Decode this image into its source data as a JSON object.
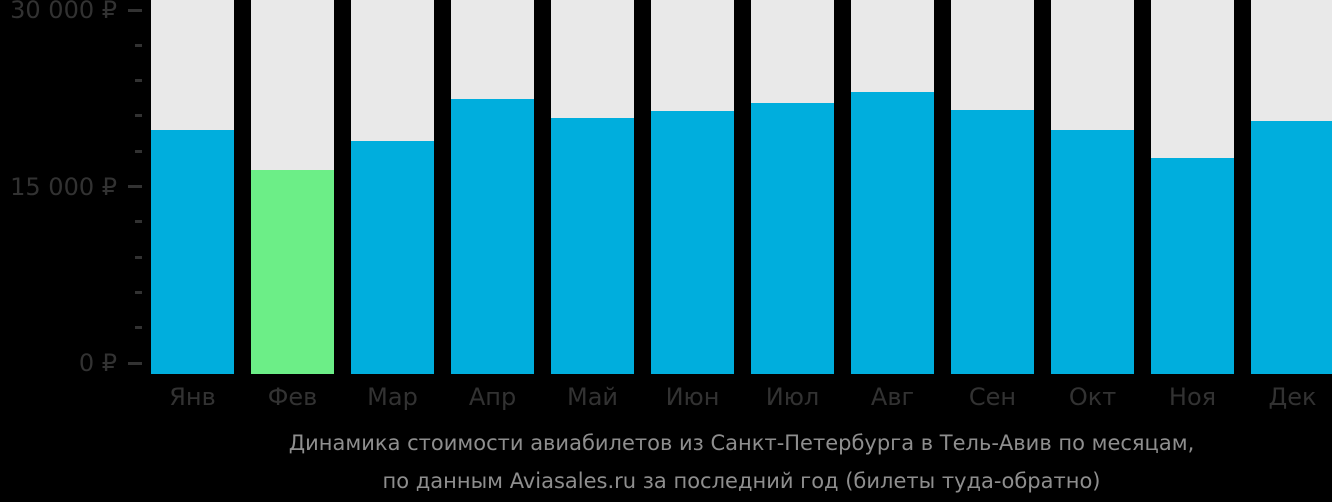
{
  "chart_data": {
    "type": "bar",
    "title": "",
    "categories": [
      "Янв",
      "Фев",
      "Мар",
      "Апр",
      "Май",
      "Июн",
      "Июл",
      "Авг",
      "Сен",
      "Окт",
      "Ноя",
      "Дек"
    ],
    "values": [
      19800,
      16400,
      18900,
      22400,
      20800,
      21400,
      22100,
      23000,
      21500,
      19800,
      17400,
      20600
    ],
    "unit": "₽",
    "highlighted_index": 1,
    "xlabel": "",
    "ylabel": "",
    "grid": false,
    "legend_position": "none",
    "y_axis": {
      "min": 0,
      "max": 30000,
      "minor_tick_step": 3000,
      "major_ticks": [
        {
          "value": 0,
          "label": "0 ₽"
        },
        {
          "value": 15000,
          "label": "15 000 ₽"
        },
        {
          "value": 30000,
          "label": "30 000 ₽"
        }
      ]
    },
    "colors": {
      "bar": "#00aedd",
      "bar_highlight": "#6cee87",
      "bar_track": "#e9e9e9",
      "axis_text": "#323232",
      "caption_text": "#8e8e8e",
      "background": "#000000"
    }
  },
  "caption": {
    "line1": "Динамика стоимости авиабилетов из Санкт-Петербурга в Тель-Авив по месяцам,",
    "line2": "по данным Aviasales.ru за последний год (билеты туда-обратно)"
  }
}
